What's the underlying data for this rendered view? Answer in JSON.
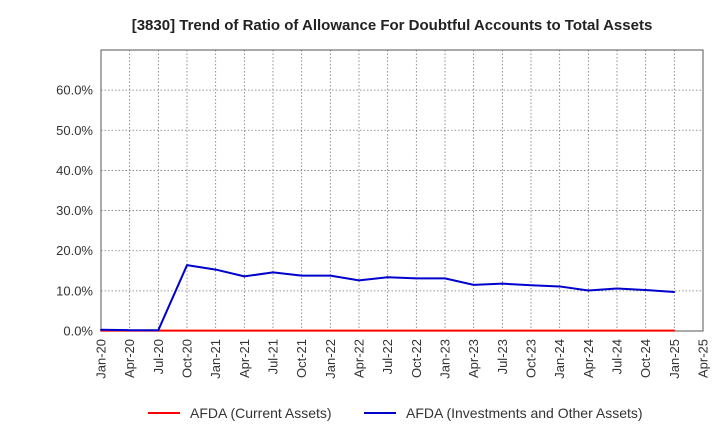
{
  "chart_data": {
    "type": "line",
    "title": "[3830]  Trend of Ratio of Allowance For Doubtful Accounts to Total Assets",
    "xlabel": "",
    "ylabel": "",
    "ylim": [
      0,
      0.7
    ],
    "yticks": [
      0,
      0.1,
      0.2,
      0.3,
      0.4,
      0.5,
      0.6
    ],
    "ytick_labels": [
      "0.0%",
      "10.0%",
      "20.0%",
      "30.0%",
      "40.0%",
      "50.0%",
      "60.0%"
    ],
    "xticks": [
      "Jan-20",
      "Apr-20",
      "Jul-20",
      "Oct-20",
      "Jan-21",
      "Apr-21",
      "Jul-21",
      "Oct-21",
      "Jan-22",
      "Apr-22",
      "Jul-22",
      "Oct-22",
      "Jan-23",
      "Apr-23",
      "Jul-23",
      "Oct-23",
      "Jan-24",
      "Apr-24",
      "Jul-24",
      "Oct-24",
      "Jan-25",
      "Apr-25"
    ],
    "x": [
      "Jan-20",
      "Apr-20",
      "Jul-20",
      "Oct-20",
      "Jan-21",
      "Apr-21",
      "Jul-21",
      "Oct-21",
      "Jan-22",
      "Apr-22",
      "Jul-22",
      "Oct-22",
      "Jan-23",
      "Apr-23",
      "Jul-23",
      "Oct-23",
      "Jan-24",
      "Apr-24",
      "Jul-24",
      "Oct-24",
      "Jan-25"
    ],
    "series": [
      {
        "name": "AFDA (Current Assets)",
        "color": "#ff0000",
        "values": [
          0.001,
          0.001,
          0.001,
          0.001,
          0.001,
          0.001,
          0.001,
          0.001,
          0.001,
          0.001,
          0.001,
          0.001,
          0.001,
          0.001,
          0.001,
          0.001,
          0.001,
          0.001,
          0.001,
          0.001,
          0.001
        ]
      },
      {
        "name": "AFDA (Investments and Other Assets)",
        "color": "#0000cc",
        "values": [
          0.003,
          0.002,
          0.002,
          0.164,
          0.153,
          0.136,
          0.146,
          0.138,
          0.138,
          0.126,
          0.134,
          0.131,
          0.131,
          0.115,
          0.118,
          0.114,
          0.111,
          0.101,
          0.106,
          0.102,
          0.097
        ]
      }
    ],
    "grid": true,
    "legend": "bottom"
  }
}
